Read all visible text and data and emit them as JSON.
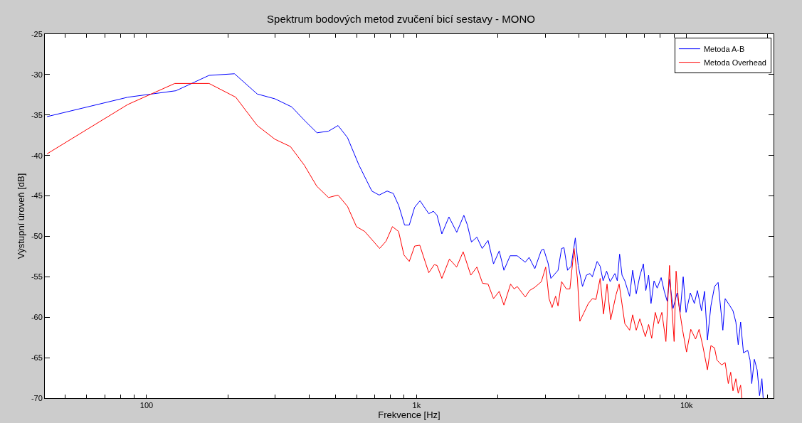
{
  "chart_data": {
    "type": "line",
    "title": "Spektrum bodových metod zvučení bicí sestavy - MONO",
    "xlabel": "Frekvence [Hz]",
    "ylabel": "Výstupní úroveň [dB]",
    "log": "x",
    "xlim": [
      42,
      21000
    ],
    "xticks": [
      {
        "value": 50,
        "label": null
      },
      {
        "value": 60,
        "label": null
      },
      {
        "value": 70,
        "label": null
      },
      {
        "value": 80,
        "label": null
      },
      {
        "value": 90,
        "label": null
      },
      100,
      {
        "value": 200,
        "label": null
      },
      {
        "value": 300,
        "label": null
      },
      {
        "value": 400,
        "label": null
      },
      {
        "value": 500,
        "label": null
      },
      {
        "value": 600,
        "label": null
      },
      {
        "value": 700,
        "label": null
      },
      {
        "value": 800,
        "label": null
      },
      {
        "value": 900,
        "label": null
      },
      {
        "value": 1000,
        "label": "1k"
      },
      {
        "value": 2000,
        "label": null
      },
      {
        "value": 3000,
        "label": null
      },
      {
        "value": 4000,
        "label": null
      },
      {
        "value": 5000,
        "label": null
      },
      {
        "value": 6000,
        "label": null
      },
      {
        "value": 7000,
        "label": null
      },
      {
        "value": 8000,
        "label": null
      },
      {
        "value": 9000,
        "label": null
      },
      {
        "value": 10000,
        "label": "10k"
      },
      {
        "value": 20000,
        "label": null
      }
    ],
    "ylim": [
      -70,
      -25
    ],
    "yticks": [
      -70,
      -65,
      -60,
      -55,
      -50,
      -45,
      -40,
      -35,
      -30,
      -25
    ],
    "grid": false,
    "legend": "top right",
    "marker": "none",
    "line_style": "solid",
    "series": [
      {
        "name": "Metoda A-B",
        "color": "#0000ff",
        "x": [
          42.8,
          85.2,
          128.5,
          170.4,
          211.7,
          257,
          299,
          345,
          388,
          428,
          472,
          512,
          555,
          612,
          683,
          727,
          778,
          820,
          859,
          903,
          940,
          984,
          1030,
          1110,
          1155,
          1191,
          1241,
          1318,
          1409,
          1497,
          1543,
          1597,
          1673,
          1750,
          1840,
          1928,
          2024,
          2107,
          2221,
          2360,
          2527,
          2612,
          2742,
          2900,
          2958,
          3069,
          3145,
          3342,
          3445,
          3516,
          3625,
          3737,
          3873,
          3970,
          4117,
          4258,
          4389,
          4479,
          4665,
          4787,
          4909,
          5058,
          5213,
          5428,
          5541,
          5651,
          5768,
          5909,
          6154,
          6316,
          6512,
          6714,
          6922,
          7065,
          7238,
          7386,
          7580,
          7786,
          8054,
          8272,
          8474,
          8647,
          8914,
          9226,
          9471,
          9719,
          9959,
          10330,
          10690,
          10970,
          11360,
          11660,
          11950,
          12310,
          12700,
          13090,
          13630,
          13900,
          14480,
          14860,
          15230,
          15540,
          15860,
          16250,
          16850,
          17190,
          17440,
          17830,
          18260,
          18640,
          19020,
          19220
        ],
        "values": [
          -35.2,
          -32.8,
          -32.0,
          -30.1,
          -29.9,
          -32.4,
          -33.0,
          -34.0,
          -35.8,
          -37.2,
          -37.0,
          -36.3,
          -37.8,
          -41.2,
          -44.4,
          -44.9,
          -44.4,
          -44.7,
          -46.2,
          -48.6,
          -48.6,
          -46.4,
          -45.6,
          -47.2,
          -46.9,
          -47.4,
          -49.7,
          -47.6,
          -49.5,
          -47.4,
          -48.6,
          -50.7,
          -50.1,
          -51.5,
          -50.5,
          -53.4,
          -51.8,
          -54.2,
          -52.4,
          -52.4,
          -53.2,
          -52.6,
          -54.0,
          -51.7,
          -51.6,
          -53.3,
          -55.2,
          -54.2,
          -51.5,
          -51.4,
          -54.2,
          -53.7,
          -50.2,
          -53.6,
          -56.2,
          -54.8,
          -54.6,
          -55.0,
          -53.1,
          -53.7,
          -55.5,
          -54.3,
          -55.6,
          -54.6,
          -55.5,
          -52.2,
          -54.8,
          -55.5,
          -57.4,
          -54.2,
          -57.1,
          -54.9,
          -53.4,
          -56.7,
          -54.8,
          -58.3,
          -55.5,
          -56.4,
          -55.1,
          -56.8,
          -58.0,
          -55.3,
          -58.9,
          -57.0,
          -59.4,
          -55.0,
          -59.4,
          -57.0,
          -58.3,
          -56.7,
          -59.2,
          -56.8,
          -62.8,
          -58.6,
          -56.2,
          -55.7,
          -61.6,
          -57.7,
          -58.6,
          -59.2,
          -60.6,
          -63.4,
          -60.6,
          -64.4,
          -64.1,
          -65.3,
          -68.2,
          -65.2,
          -66.5,
          -69.7,
          -67.6,
          -70.0
        ]
      },
      {
        "name": "Metoda Overhead",
        "color": "#ff0000",
        "x": [
          42.8,
          85.2,
          127.2,
          170.4,
          214,
          257,
          299,
          341,
          384,
          427,
          472,
          512,
          555,
          599,
          643,
          730,
          771,
          814,
          858,
          898,
          940,
          984,
          1028,
          1110,
          1163,
          1191,
          1241,
          1324,
          1407,
          1488,
          1588,
          1673,
          1756,
          1840,
          1928,
          2024,
          2107,
          2230,
          2299,
          2360,
          2527,
          2621,
          2742,
          2900,
          3008,
          3096,
          3177,
          3273,
          3342,
          3445,
          3587,
          3698,
          3834,
          3945,
          4025,
          4174,
          4328,
          4479,
          4619,
          4787,
          4925,
          5077,
          5236,
          5484,
          5629,
          5909,
          6154,
          6316,
          6512,
          6714,
          7036,
          7238,
          7430,
          7659,
          7861,
          8101,
          8386,
          8647,
          8780,
          8996,
          9149,
          9372,
          9660,
          10000,
          10370,
          10800,
          11130,
          11480,
          11950,
          12310,
          12700,
          12960,
          13490,
          13900,
          14280,
          14570,
          14860,
          15230,
          15540,
          15860,
          16030
        ],
        "values": [
          -39.8,
          -33.7,
          -31.1,
          -31.1,
          -32.8,
          -36.3,
          -38.0,
          -38.9,
          -41.2,
          -43.8,
          -45.2,
          -44.9,
          -46.3,
          -48.8,
          -49.4,
          -51.5,
          -50.6,
          -48.8,
          -49.4,
          -52.3,
          -53.1,
          -51.2,
          -51.1,
          -54.5,
          -53.5,
          -53.6,
          -55.2,
          -52.8,
          -53.8,
          -51.9,
          -54.8,
          -53.8,
          -55.8,
          -55.9,
          -57.7,
          -56.8,
          -58.5,
          -55.9,
          -56.5,
          -56.2,
          -57.5,
          -56.7,
          -56.3,
          -55.6,
          -53.8,
          -57.7,
          -58.8,
          -57.4,
          -58.6,
          -55.6,
          -56.5,
          -56.5,
          -51.5,
          -55.3,
          -60.5,
          -59.4,
          -58.3,
          -57.7,
          -57.8,
          -55.2,
          -59.6,
          -55.9,
          -60.3,
          -57.2,
          -55.9,
          -60.8,
          -61.6,
          -59.7,
          -61.6,
          -60.2,
          -62.4,
          -60.9,
          -62.6,
          -59.4,
          -60.8,
          -59.4,
          -63.0,
          -53.6,
          -57.7,
          -63.0,
          -54.3,
          -58.6,
          -61.5,
          -64.3,
          -61.5,
          -62.7,
          -61.5,
          -63.5,
          -66.5,
          -63.5,
          -63.8,
          -65.3,
          -65.9,
          -65.6,
          -68.2,
          -66.8,
          -69.1,
          -67.6,
          -69.4,
          -68.4,
          -70.0
        ]
      }
    ]
  }
}
